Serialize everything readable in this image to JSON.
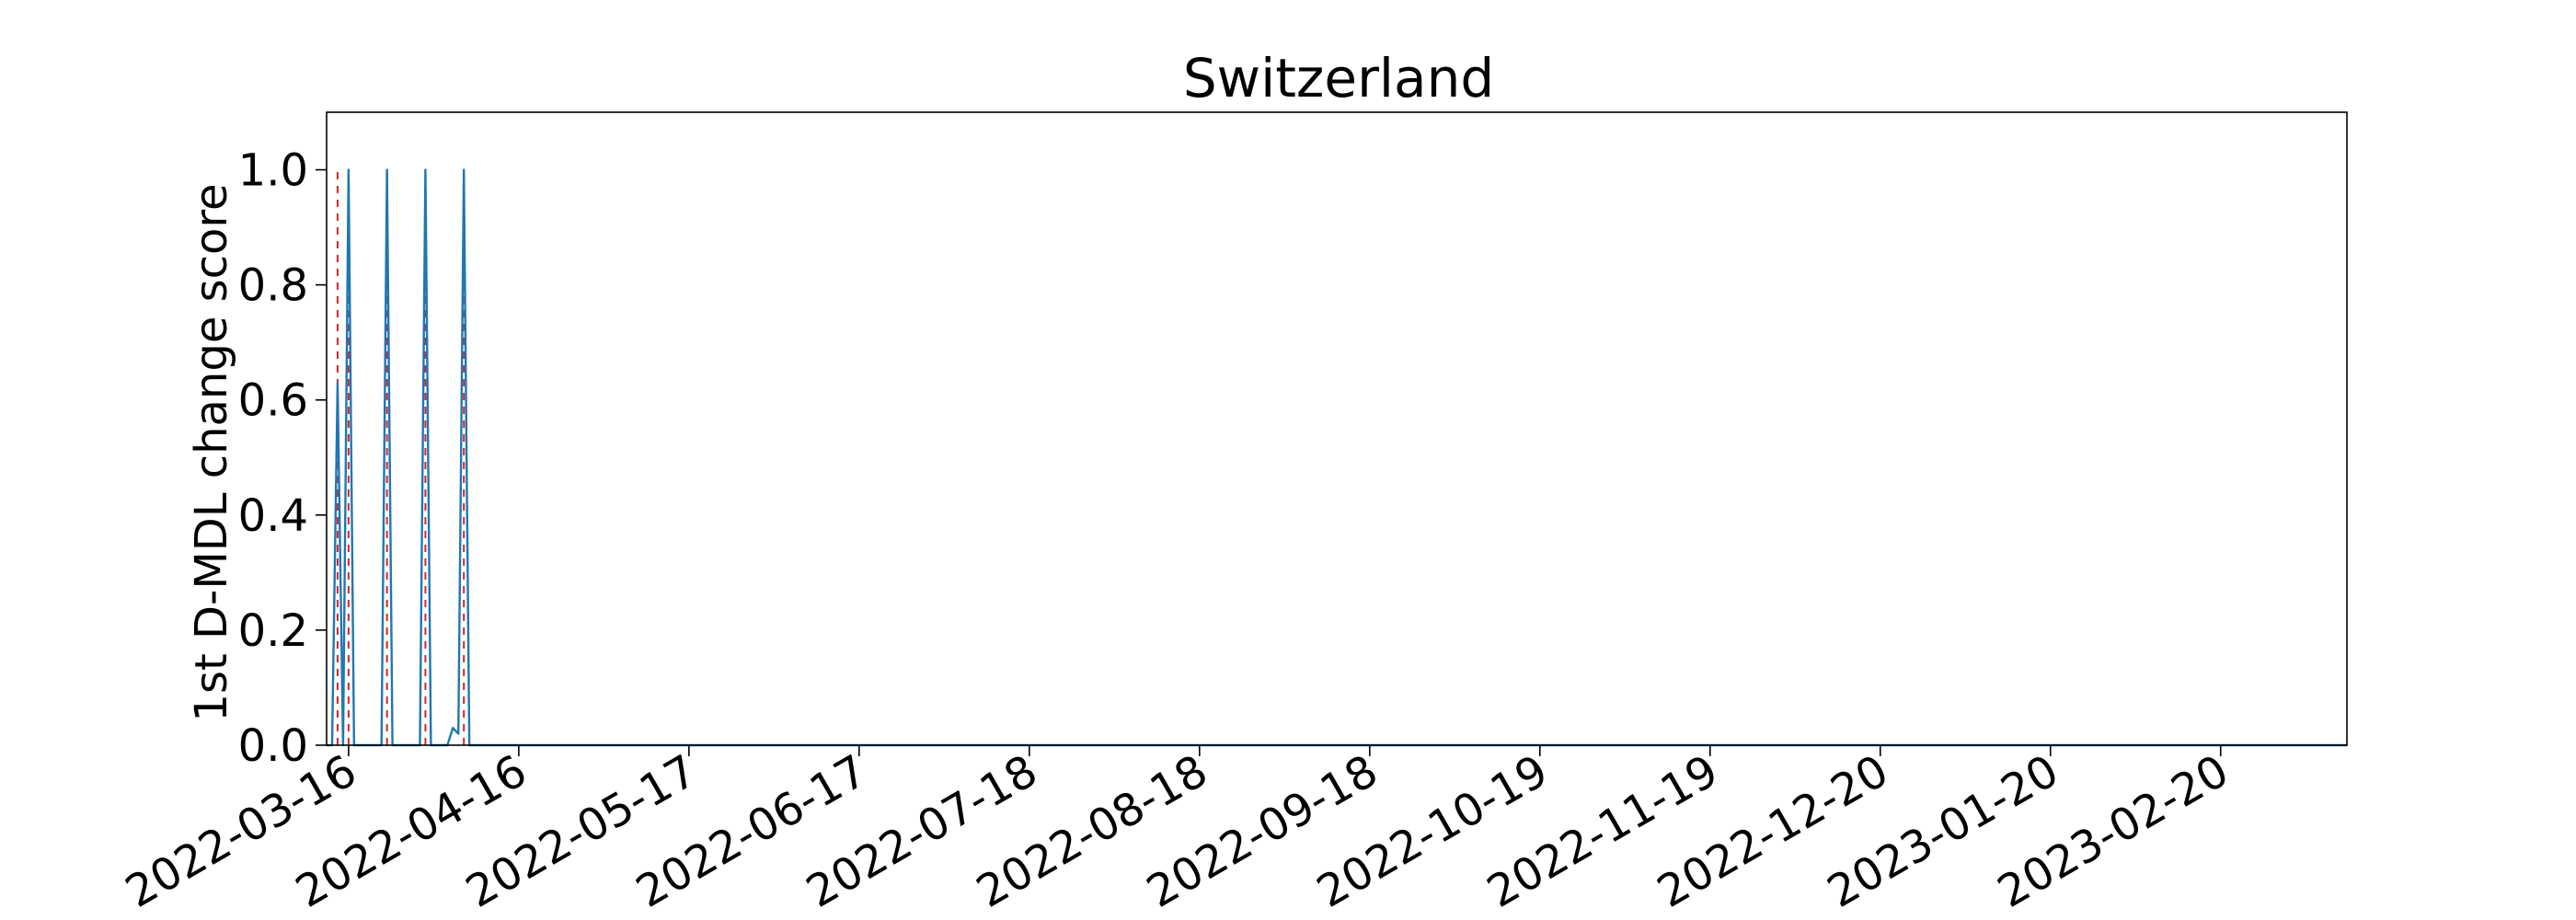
{
  "chart_data": {
    "type": "line",
    "title": "Switzerland",
    "xlabel": "",
    "ylabel": "1st D-MDL change score",
    "x_start": "2022-03-12",
    "x_end": "2023-03-15",
    "ylim": [
      0.0,
      1.1
    ],
    "y_ticks": [
      {
        "value": 0.0,
        "label": "0.0"
      },
      {
        "value": 0.2,
        "label": "0.2"
      },
      {
        "value": 0.4,
        "label": "0.4"
      },
      {
        "value": 0.6,
        "label": "0.6"
      },
      {
        "value": 0.8,
        "label": "0.8"
      },
      {
        "value": 1.0,
        "label": "1.0"
      }
    ],
    "x_ticks": [
      {
        "date": "2022-03-16",
        "label": "2022-03-16"
      },
      {
        "date": "2022-04-16",
        "label": "2022-04-16"
      },
      {
        "date": "2022-05-17",
        "label": "2022-05-17"
      },
      {
        "date": "2022-06-17",
        "label": "2022-06-17"
      },
      {
        "date": "2022-07-18",
        "label": "2022-07-18"
      },
      {
        "date": "2022-08-18",
        "label": "2022-08-18"
      },
      {
        "date": "2022-09-18",
        "label": "2022-09-18"
      },
      {
        "date": "2022-10-19",
        "label": "2022-10-19"
      },
      {
        "date": "2022-11-19",
        "label": "2022-11-19"
      },
      {
        "date": "2022-12-20",
        "label": "2022-12-20"
      },
      {
        "date": "2023-01-20",
        "label": "2023-01-20"
      },
      {
        "date": "2023-02-20",
        "label": "2023-02-20"
      }
    ],
    "grid": false,
    "series": [
      {
        "color": "#1f77b4",
        "style": "solid",
        "points": [
          {
            "x": "2022-03-12",
            "y": 0.0
          },
          {
            "x": "2022-03-13",
            "y": 0.0
          },
          {
            "x": "2022-03-14",
            "y": 0.63
          },
          {
            "x": "2022-03-15",
            "y": 0.0
          },
          {
            "x": "2022-03-16",
            "y": 1.0
          },
          {
            "x": "2022-03-17",
            "y": 0.0
          },
          {
            "x": "2022-03-22",
            "y": 0.0
          },
          {
            "x": "2022-03-23",
            "y": 1.0
          },
          {
            "x": "2022-03-24",
            "y": 0.0
          },
          {
            "x": "2022-03-29",
            "y": 0.0
          },
          {
            "x": "2022-03-30",
            "y": 1.0
          },
          {
            "x": "2022-03-31",
            "y": 0.0
          },
          {
            "x": "2022-04-03",
            "y": 0.0
          },
          {
            "x": "2022-04-04",
            "y": 0.03
          },
          {
            "x": "2022-04-05",
            "y": 0.02
          },
          {
            "x": "2022-04-06",
            "y": 1.0
          },
          {
            "x": "2022-04-07",
            "y": 0.0
          },
          {
            "x": "2023-03-15",
            "y": 0.0
          }
        ]
      }
    ],
    "change_points": {
      "color": "#d62728",
      "style": "dashed",
      "dates": [
        "2022-03-14",
        "2022-03-16",
        "2022-03-23",
        "2022-03-30",
        "2022-04-06"
      ]
    },
    "baseline_marks": {
      "color": "#2ca02c",
      "style": "dashed",
      "from": "2022-04-07",
      "to": "2023-03-15"
    }
  }
}
